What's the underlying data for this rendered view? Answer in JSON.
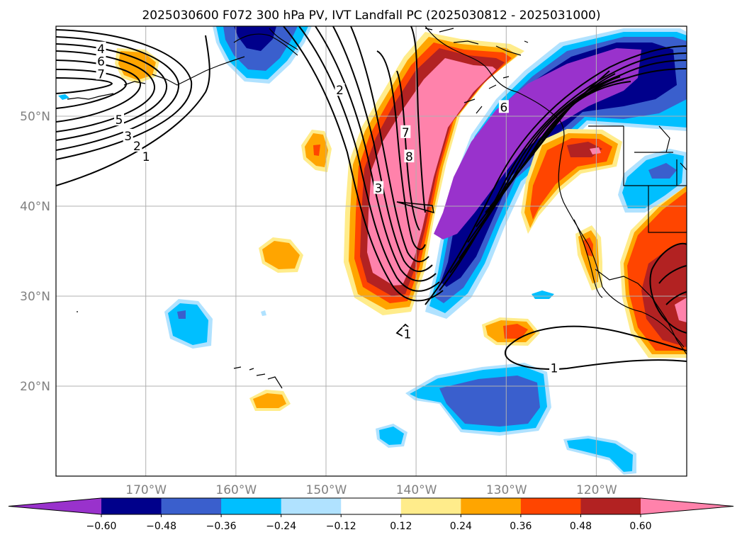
{
  "title": "2025030600 F072 300 hPa PV, IVT Landfall PC (2025030812 - 2025031000)",
  "map": {
    "lon_range": [
      -180,
      -110
    ],
    "lat_range": [
      10,
      60
    ],
    "lat_ticks": [
      {
        "value": 20,
        "label": "20°N"
      },
      {
        "value": 30,
        "label": "30°N"
      },
      {
        "value": 40,
        "label": "40°N"
      },
      {
        "value": 50,
        "label": "50°N"
      }
    ],
    "lon_ticks": [
      {
        "value": -170,
        "label": "170°W"
      },
      {
        "value": -160,
        "label": "160°W"
      },
      {
        "value": -150,
        "label": "150°W"
      },
      {
        "value": -140,
        "label": "140°W"
      },
      {
        "value": -130,
        "label": "130°W"
      },
      {
        "value": -120,
        "label": "120°W"
      }
    ],
    "gridlines": true,
    "contour_labels": [
      {
        "text": "4",
        "lon": -175,
        "lat": 57.5
      },
      {
        "text": "6",
        "lon": -175,
        "lat": 56.1
      },
      {
        "text": "7",
        "lon": -175,
        "lat": 54.7
      },
      {
        "text": "5",
        "lon": -173,
        "lat": 49.6
      },
      {
        "text": "3",
        "lon": -172,
        "lat": 47.8
      },
      {
        "text": "2",
        "lon": -171,
        "lat": 46.7
      },
      {
        "text": "1",
        "lon": -170,
        "lat": 45.5
      },
      {
        "text": "2",
        "lon": -148.5,
        "lat": 52.9
      },
      {
        "text": "7",
        "lon": -141.2,
        "lat": 48.2
      },
      {
        "text": "8",
        "lon": -140.8,
        "lat": 45.5
      },
      {
        "text": "3",
        "lon": -144.2,
        "lat": 42.0
      },
      {
        "text": "6",
        "lon": -130.3,
        "lat": 51.0
      },
      {
        "text": "1",
        "lon": -141.0,
        "lat": 25.8
      },
      {
        "text": "1",
        "lon": -124.7,
        "lat": 22.0
      }
    ]
  },
  "colorbar": {
    "colors": [
      "#9932cc",
      "#00008b",
      "#3a5fcd",
      "#00bfff",
      "#b0e2ff",
      "#ffffff",
      "#ffec8b",
      "#ffa500",
      "#ff4500",
      "#b22222",
      "#ff82ab"
    ],
    "ticks": [
      "−0.60",
      "−0.48",
      "−0.36",
      "−0.24",
      "−0.12",
      "0.12",
      "0.24",
      "0.36",
      "0.48",
      "0.60"
    ]
  }
}
